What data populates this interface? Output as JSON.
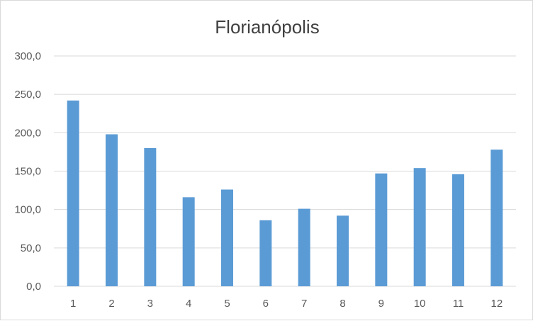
{
  "chart_data": {
    "type": "bar",
    "title": "Florianópolis",
    "xlabel": "",
    "ylabel": "",
    "categories": [
      "1",
      "2",
      "3",
      "4",
      "5",
      "6",
      "7",
      "8",
      "9",
      "10",
      "11",
      "12"
    ],
    "values": [
      242,
      198,
      180,
      116,
      126,
      86,
      101,
      92,
      147,
      154,
      146,
      178
    ],
    "ylim": [
      0,
      300
    ],
    "yticks": [
      "0,0",
      "50,0",
      "100,0",
      "150,0",
      "200,0",
      "250,0",
      "300,0"
    ],
    "grid": true,
    "legend": "none",
    "bar_color": "#5b9bd5",
    "grid_color": "#d9d9d9"
  }
}
